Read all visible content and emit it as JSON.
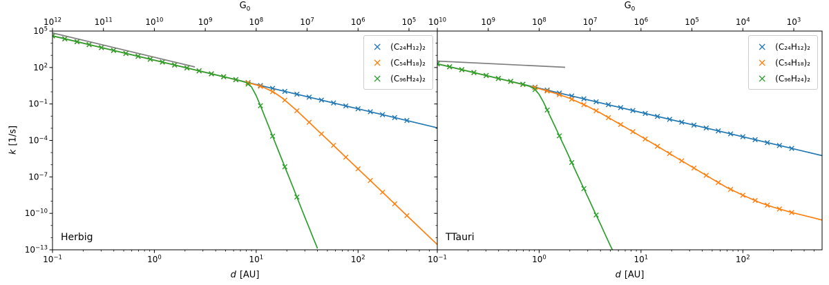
{
  "chart_data": [
    {
      "type": "line",
      "panel_label": "Herbig",
      "xscale": "log",
      "yscale": "log",
      "xlabel": {
        "var": "d",
        "unit": "[AU]"
      },
      "ylabel": {
        "var": "k",
        "unit": "[1/s]"
      },
      "top_label": {
        "text": "G",
        "sub": "0"
      },
      "xlim": [
        0.1,
        600
      ],
      "ylim": [
        1e-13,
        100000.0
      ],
      "x_major_tick_exponents": [
        -1,
        0,
        1,
        2
      ],
      "y_major_tick_exponents": [
        5,
        2,
        -1,
        -4,
        -7,
        -10,
        -13
      ],
      "top_tick_exponents": [
        12,
        11,
        10,
        9,
        8,
        7,
        6,
        5
      ],
      "g0_at_d0p1": 1000000000000.0,
      "legend_position": "upper right",
      "series": [
        {
          "slug": "reference-line",
          "label": null,
          "in_legend": false,
          "color": "#7f7f7f",
          "line": [
            [
              0.1,
              70000
            ],
            [
              2.5,
              112
            ]
          ],
          "markers_d": []
        },
        {
          "slug": "c24h12-dimer",
          "label": "(C₂₄H₁₂)₂",
          "in_legend": true,
          "color": "#1f77b4",
          "line": [
            [
              0.1,
              40000
            ],
            [
              1,
              400
            ],
            [
              10,
              4
            ],
            [
              100,
              0.04
            ],
            [
              600,
              0.0011
            ]
          ],
          "markers_d": [
            0.1,
            0.132,
            0.174,
            0.229,
            0.302,
            0.398,
            0.525,
            0.692,
            0.912,
            1.2,
            1.58,
            2.09,
            2.75,
            3.63,
            4.79,
            6.31,
            8.32,
            11,
            14.5,
            19.1,
            25.1,
            33.1,
            43.7,
            57.5,
            75.9,
            100,
            132,
            174,
            229,
            302
          ]
        },
        {
          "slug": "c54h18-dimer",
          "label": "(C₅₄H₁₈)₂",
          "in_legend": true,
          "color": "#ff7f0e",
          "line": [
            [
              0.1,
              40000
            ],
            [
              0.3,
              4440
            ],
            [
              1,
              400
            ],
            [
              2,
              100
            ],
            [
              4,
              25
            ],
            [
              6,
              11
            ],
            [
              8,
              6.1
            ],
            [
              10,
              3.7
            ],
            [
              12,
              2.2
            ],
            [
              15,
              0.89
            ],
            [
              18,
              0.31
            ],
            [
              20,
              0.15
            ],
            [
              25,
              0.029
            ],
            [
              30,
              0.0068
            ],
            [
              40,
              0.00069
            ],
            [
              50,
              0.00012
            ],
            [
              70,
              7.9e-06
            ],
            [
              100,
              4.6e-07
            ],
            [
              150,
              1.8e-08
            ],
            [
              200,
              1.8e-09
            ],
            [
              300,
              6.9e-11
            ],
            [
              400,
              6.9e-12
            ],
            [
              600,
              2.7e-13
            ]
          ],
          "markers_d": [
            0.1,
            0.132,
            0.174,
            0.229,
            0.302,
            0.398,
            0.525,
            0.692,
            0.912,
            1.2,
            1.58,
            2.09,
            2.75,
            3.63,
            4.79,
            6.31,
            8.32,
            11,
            14.5,
            19.1,
            25.1,
            33.1,
            43.7,
            57.5,
            75.9,
            100,
            132,
            174,
            229,
            302
          ]
        },
        {
          "slug": "c96h24-dimer",
          "label": "(C₉₆H₂₄)₂",
          "in_legend": true,
          "color": "#2ca02c",
          "line": [
            [
              0.1,
              40000
            ],
            [
              0.3,
              4440
            ],
            [
              1,
              400
            ],
            [
              2,
              100
            ],
            [
              4,
              25
            ],
            [
              6,
              11.1
            ],
            [
              7,
              8.1
            ],
            [
              8,
              5.7
            ],
            [
              9,
              2.5
            ],
            [
              10,
              0.48
            ],
            [
              11,
              0.072
            ],
            [
              12,
              0.012
            ],
            [
              13,
              0.0022
            ],
            [
              15,
              0.00011
            ],
            [
              17,
              7.8e-06
            ],
            [
              20,
              2.6e-07
            ],
            [
              23,
              1.4e-08
            ],
            [
              25,
              2.4e-09
            ],
            [
              28,
              2.1e-10
            ],
            [
              30,
              5e-11
            ],
            [
              33,
              6.9e-12
            ],
            [
              36,
              1.1e-12
            ],
            [
              40,
              1.3e-13
            ]
          ],
          "markers_d": [
            0.1,
            0.132,
            0.174,
            0.229,
            0.302,
            0.398,
            0.525,
            0.692,
            0.912,
            1.2,
            1.58,
            2.09,
            2.75,
            3.63,
            4.79,
            6.31,
            8.32,
            11,
            14.5,
            19.1,
            25.1
          ]
        }
      ]
    },
    {
      "type": "line",
      "panel_label": "TTauri",
      "xscale": "log",
      "yscale": "log",
      "xlabel": {
        "var": "d",
        "unit": "[AU]"
      },
      "ylabel": {
        "var": "k",
        "unit": "[1/s]"
      },
      "top_label": {
        "text": "G",
        "sub": "0"
      },
      "xlim": [
        0.1,
        600
      ],
      "ylim": [
        1e-13,
        100000.0
      ],
      "x_major_tick_exponents": [
        -1,
        0,
        1,
        2
      ],
      "y_major_tick_exponents": [
        5,
        2,
        -1,
        -4,
        -7,
        -10,
        -13
      ],
      "top_tick_exponents": [
        10,
        9,
        8,
        7,
        6,
        5,
        4,
        3
      ],
      "g0_at_d0p1": 10000000000.0,
      "legend_position": "upper right",
      "series": [
        {
          "slug": "reference-line",
          "label": null,
          "in_legend": false,
          "color": "#7f7f7f",
          "line": [
            [
              0.1,
              340
            ],
            [
              1.8,
              105
            ]
          ],
          "markers_d": []
        },
        {
          "slug": "c24h12-dimer",
          "label": "(C₂₄H₁₂)₂",
          "in_legend": true,
          "color": "#1f77b4",
          "line": [
            [
              0.1,
              200
            ],
            [
              1,
              2
            ],
            [
              10,
              0.02
            ],
            [
              100,
              0.0002
            ],
            [
              600,
              5.6e-06
            ]
          ],
          "markers_d": [
            0.1,
            0.132,
            0.174,
            0.229,
            0.302,
            0.398,
            0.525,
            0.692,
            0.912,
            1.2,
            1.58,
            2.09,
            2.75,
            3.63,
            4.79,
            6.31,
            8.32,
            11,
            14.5,
            19.1,
            25.1,
            33.1,
            43.7,
            57.5,
            75.9,
            100,
            132,
            174,
            229,
            302
          ]
        },
        {
          "slug": "c54h18-dimer",
          "label": "(C₅₄H₁₈)₂",
          "in_legend": true,
          "color": "#ff7f0e",
          "line": [
            [
              0.1,
              200
            ],
            [
              0.3,
              22.2
            ],
            [
              0.6,
              5.4
            ],
            [
              1,
              1.83
            ],
            [
              1.5,
              0.68
            ],
            [
              2,
              0.29
            ],
            [
              3,
              0.063
            ],
            [
              4,
              0.018
            ],
            [
              6,
              0.0026
            ],
            [
              8,
              0.00064
            ],
            [
              10,
              0.00021
            ],
            [
              15,
              2.8e-05
            ],
            [
              20,
              6.6e-06
            ],
            [
              30,
              8.7e-07
            ],
            [
              50,
              6.8e-08
            ],
            [
              70,
              1.3e-08
            ],
            [
              100,
              3.1e-09
            ],
            [
              150,
              7.2e-10
            ],
            [
              200,
              3.2e-10
            ],
            [
              300,
              1.2e-10
            ],
            [
              450,
              5.2e-11
            ],
            [
              600,
              2.8e-11
            ]
          ],
          "markers_d": [
            0.1,
            0.132,
            0.174,
            0.229,
            0.302,
            0.398,
            0.525,
            0.692,
            0.912,
            1.2,
            1.58,
            2.09,
            2.75,
            3.63,
            4.79,
            6.31,
            8.32,
            11,
            14.5,
            19.1,
            25.1,
            33.1,
            43.7,
            57.5,
            75.9,
            100,
            132,
            174,
            229,
            302
          ]
        },
        {
          "slug": "c96h24-dimer",
          "label": "(C₉₆H₂₄)₂",
          "in_legend": true,
          "color": "#2ca02c",
          "line": [
            [
              0.1,
              200
            ],
            [
              0.3,
              22.2
            ],
            [
              0.5,
              8
            ],
            [
              0.7,
              4.05
            ],
            [
              0.8,
              2.9
            ],
            [
              0.9,
              1.74
            ],
            [
              1,
              0.61
            ],
            [
              1.1,
              0.15
            ],
            [
              1.2,
              0.032
            ],
            [
              1.4,
              0.0021
            ],
            [
              1.6,
              0.00019
            ],
            [
              1.8,
              2.3e-05
            ],
            [
              2,
              3.4e-06
            ],
            [
              2.5,
              5.9e-08
            ],
            [
              3,
              2.3e-09
            ],
            [
              3.5,
              1.4e-10
            ],
            [
              4,
              1.3e-11
            ],
            [
              4.5,
              1.5e-12
            ],
            [
              5,
              2.2e-13
            ],
            [
              5.4,
              6e-14
            ]
          ],
          "markers_d": [
            0.1,
            0.132,
            0.174,
            0.229,
            0.302,
            0.398,
            0.525,
            0.692,
            0.912,
            1.2,
            1.58,
            2.09,
            2.75,
            3.63
          ]
        }
      ]
    }
  ]
}
